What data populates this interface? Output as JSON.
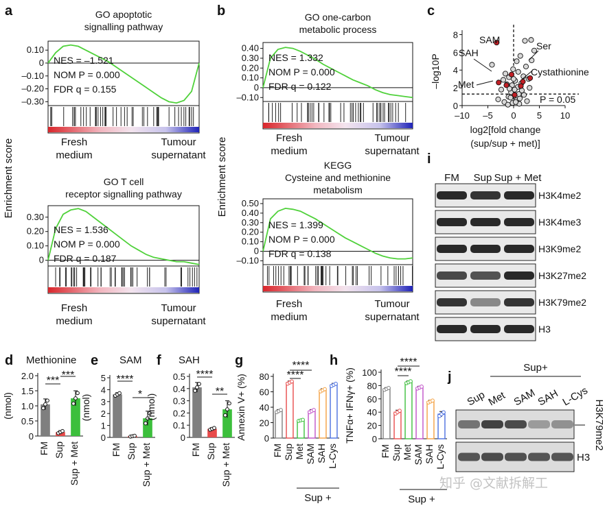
{
  "panel_letters": [
    "a",
    "b",
    "c",
    "d",
    "e",
    "f",
    "g",
    "h",
    "i",
    "j"
  ],
  "watermark": "知乎 @文献拆解工",
  "chart_data": [
    {
      "id": "a_top",
      "type": "line",
      "title": "GO apoptotic signalling pathway",
      "ylabel": "Enrichment score",
      "yticks": [
        "0.10",
        "0",
        "–0.10",
        "–0.20",
        "–0.30"
      ],
      "ylim": [
        -0.33,
        0.17
      ],
      "x": [
        0,
        5,
        10,
        15,
        20,
        25,
        30,
        35,
        40,
        45,
        50,
        55,
        60,
        65,
        70,
        75,
        80,
        85,
        90,
        95,
        100
      ],
      "y": [
        0.0,
        0.08,
        0.13,
        0.14,
        0.13,
        0.1,
        0.07,
        0.04,
        0.01,
        -0.03,
        -0.07,
        -0.11,
        -0.15,
        -0.19,
        -0.23,
        -0.27,
        -0.3,
        -0.31,
        -0.29,
        -0.22,
        0.0
      ],
      "stats": [
        "NES = –1.521",
        "NOM P = 0.000",
        "FDR q = 0.155"
      ],
      "left_label": "Fresh medium",
      "right_label": "Tumour supernatant"
    },
    {
      "id": "a_bottom",
      "type": "line",
      "title": "GO T cell receptor signalling pathway",
      "yticks": [
        "0.30",
        "0.20",
        "0.10",
        "0"
      ],
      "ylim": [
        -0.04,
        0.38
      ],
      "x": [
        0,
        5,
        10,
        15,
        20,
        25,
        30,
        35,
        40,
        45,
        50,
        55,
        60,
        65,
        70,
        75,
        80,
        85,
        90,
        95,
        100
      ],
      "y": [
        0.0,
        0.22,
        0.32,
        0.35,
        0.36,
        0.34,
        0.3,
        0.26,
        0.22,
        0.18,
        0.14,
        0.1,
        0.07,
        0.04,
        0.02,
        0.01,
        0.0,
        -0.01,
        -0.01,
        -0.02,
        -0.03
      ],
      "stats": [
        "NES = 1.536",
        "NOM P = 0.000",
        "FDR q = 0.187"
      ],
      "left_label": "Fresh medium",
      "right_label": "Tumour supernatant"
    },
    {
      "id": "b_top",
      "type": "line",
      "title": "GO one-carbon metabolic process",
      "ylabel": "Enrichment score",
      "yticks": [
        "0.40",
        "0.30",
        "0.20",
        "0.10",
        "0",
        "–0.10"
      ],
      "ylim": [
        -0.14,
        0.46
      ],
      "x": [
        0,
        5,
        10,
        15,
        20,
        25,
        30,
        35,
        40,
        45,
        50,
        55,
        60,
        65,
        70,
        75,
        80,
        85,
        90,
        95,
        100
      ],
      "y": [
        0.0,
        0.3,
        0.39,
        0.41,
        0.4,
        0.37,
        0.33,
        0.29,
        0.24,
        0.2,
        0.16,
        0.12,
        0.08,
        0.05,
        0.02,
        -0.02,
        -0.05,
        -0.07,
        -0.08,
        -0.09,
        -0.1
      ],
      "stats": [
        "NES = 1.332",
        "NOM P = 0.000",
        "FDR q = 0.122"
      ],
      "left_label": "Fresh medium",
      "right_label": "Tumour supernatant"
    },
    {
      "id": "b_bottom",
      "type": "line",
      "title": "KEGG Cysteine and methionine metabolism",
      "yticks": [
        "0.50",
        "0.40",
        "0.30",
        "0.20",
        "0.10",
        "0",
        "–0.10"
      ],
      "ylim": [
        -0.14,
        0.55
      ],
      "x": [
        0,
        5,
        10,
        15,
        20,
        25,
        30,
        35,
        40,
        45,
        50,
        55,
        60,
        65,
        70,
        75,
        80,
        85,
        90,
        95,
        100
      ],
      "y": [
        0.0,
        0.34,
        0.42,
        0.45,
        0.44,
        0.42,
        0.38,
        0.34,
        0.29,
        0.24,
        0.19,
        0.14,
        0.1,
        0.06,
        0.02,
        -0.02,
        -0.05,
        -0.07,
        -0.08,
        -0.08,
        -0.07
      ],
      "stats": [
        "NES = 1.399",
        "NOM P = 0.000",
        "FDR q = 0.138"
      ],
      "left_label": "Fresh medium",
      "right_label": "Tumour supernatant"
    },
    {
      "id": "c",
      "type": "scatter",
      "xlabel": "log2[fold change (sup/sup + met)]",
      "ylabel": "–log10P",
      "xlim": [
        -10,
        10
      ],
      "ylim": [
        0,
        8.5
      ],
      "xticks": [
        "–10",
        "–5",
        "0",
        "5",
        "10"
      ],
      "yticks": [
        "0",
        "2",
        "4",
        "6",
        "8"
      ],
      "threshold_label": "P = 0.05",
      "annotations": [
        "SAM",
        "SAH",
        "Met",
        "Ser",
        "Cystathionine"
      ],
      "points": [
        [
          -0.2,
          0.3
        ],
        [
          0.5,
          0.6
        ],
        [
          -1.0,
          1.0
        ],
        [
          1.2,
          0.8
        ],
        [
          -0.5,
          1.5
        ],
        [
          0.8,
          2.1
        ],
        [
          -1.8,
          0.4
        ],
        [
          2.0,
          1.2
        ],
        [
          0.3,
          2.8
        ],
        [
          -0.9,
          3.2
        ],
        [
          1.5,
          2.5
        ],
        [
          -2.4,
          1.8
        ],
        [
          2.6,
          0.5
        ],
        [
          -0.1,
          4.1
        ],
        [
          0.9,
          3.8
        ],
        [
          -1.3,
          2.4
        ],
        [
          1.9,
          3.3
        ],
        [
          -0.6,
          0.9
        ],
        [
          0.2,
          1.8
        ],
        [
          3.1,
          2.0
        ],
        [
          -3.0,
          0.7
        ],
        [
          2.4,
          4.4
        ],
        [
          -1.6,
          3.6
        ],
        [
          0.6,
          5.0
        ],
        [
          1.3,
          5.6
        ],
        [
          3.5,
          5.1
        ],
        [
          -4.2,
          4.6
        ],
        [
          2.2,
          7.3
        ],
        [
          3.4,
          7.4
        ],
        [
          4.0,
          6.2
        ],
        [
          1.1,
          0.2
        ],
        [
          -0.3,
          2.3
        ],
        [
          0.0,
          3.0
        ],
        [
          1.6,
          1.7
        ],
        [
          -2.0,
          2.9
        ],
        [
          2.9,
          3.0
        ],
        [
          -1.1,
          0.1
        ],
        [
          0.4,
          0.4
        ],
        [
          -0.8,
          1.9
        ],
        [
          1.0,
          1.3
        ]
      ],
      "highlight_points": [
        [
          -3.3,
          7.1
        ],
        [
          -0.4,
          3.5
        ],
        [
          -2.9,
          2.6
        ],
        [
          3.2,
          3.1
        ],
        [
          1.8,
          2.7
        ],
        [
          -1.4,
          2.3
        ],
        [
          0.2,
          1.2
        ],
        [
          1.4,
          2.2
        ]
      ]
    },
    {
      "id": "d",
      "type": "bar",
      "title": "Methionine",
      "ylabel": "(nmol)",
      "categories": [
        "FM",
        "Sup",
        "Sup + Met"
      ],
      "values": [
        1.05,
        0.13,
        1.25
      ],
      "errors": [
        0.18,
        0.05,
        0.25
      ],
      "ylim": [
        0,
        2.0
      ],
      "yticks": [
        "0",
        "0.5",
        "1.0",
        "1.5",
        "2.0"
      ],
      "sig": [
        "***",
        "***"
      ]
    },
    {
      "id": "e",
      "type": "bar",
      "title": "SAM",
      "ylabel": "(nmol)",
      "categories": [
        "FM",
        "Sup",
        "Sup + Met"
      ],
      "values": [
        3.6,
        0.1,
        1.6
      ],
      "errors": [
        0.15,
        0.05,
        0.6
      ],
      "ylim": [
        0,
        5
      ],
      "yticks": [
        "0",
        "1",
        "2",
        "3",
        "4",
        "5"
      ],
      "sig": [
        "****",
        "*"
      ]
    },
    {
      "id": "f",
      "type": "bar",
      "title": "SAH",
      "ylabel": "(nmol)",
      "categories": [
        "FM",
        "Sup",
        "Sup + Met"
      ],
      "values": [
        0.41,
        0.07,
        0.23
      ],
      "errors": [
        0.04,
        0.01,
        0.07
      ],
      "ylim": [
        0,
        0.5
      ],
      "yticks": [
        "0",
        "0.1",
        "0.2",
        "0.3",
        "0.4",
        "0.5"
      ],
      "sig": [
        "****",
        "**"
      ]
    },
    {
      "id": "g",
      "type": "bar",
      "ylabel": "Annexin V+ (%)",
      "categories": [
        "FM",
        "Sup",
        "Met",
        "SAM",
        "SAH",
        "L-Cys"
      ],
      "values": [
        35,
        72,
        23,
        35,
        62,
        69
      ],
      "errors": [
        2,
        2,
        1,
        2,
        2,
        2
      ],
      "ylim": [
        0,
        80
      ],
      "yticks": [
        "0",
        "20",
        "40",
        "60",
        "80"
      ],
      "sig": [
        "****",
        "****"
      ],
      "group_label": "Sup +"
    },
    {
      "id": "h",
      "type": "bar",
      "ylabel": "TNFα+ IFNγ+ (%)",
      "categories": [
        "FM",
        "Sup",
        "Met",
        "SAM",
        "SAH",
        "L-Cys"
      ],
      "values": [
        75,
        40,
        85,
        77,
        56,
        37
      ],
      "errors": [
        2,
        3,
        2,
        2,
        2,
        4
      ],
      "ylim": [
        0,
        100
      ],
      "yticks": [
        "0",
        "20",
        "40",
        "60",
        "80",
        "100"
      ],
      "sig": [
        "****",
        "****"
      ],
      "group_label": "Sup +"
    }
  ],
  "blot_i": {
    "lanes": [
      "FM",
      "Sup",
      "Sup + Met"
    ],
    "rows": [
      "H3K4me2",
      "H3K4me3",
      "H3K9me2",
      "H3K27me2",
      "H3K79me2",
      "H3"
    ],
    "intensity": [
      [
        0.9,
        0.85,
        0.9
      ],
      [
        0.9,
        0.9,
        0.9
      ],
      [
        0.9,
        0.9,
        0.9
      ],
      [
        0.75,
        0.7,
        0.9
      ],
      [
        0.85,
        0.45,
        0.85
      ],
      [
        0.9,
        0.9,
        0.9
      ]
    ]
  },
  "blot_j": {
    "group_label": "Sup+",
    "lanes": [
      "Sup",
      "Met",
      "SAM",
      "SAH",
      "L-Cys"
    ],
    "rows": [
      "H3K79me2",
      "H3"
    ],
    "intensity": [
      [
        0.55,
        0.8,
        0.75,
        0.35,
        0.4
      ],
      [
        0.7,
        0.75,
        0.72,
        0.7,
        0.7
      ]
    ]
  }
}
